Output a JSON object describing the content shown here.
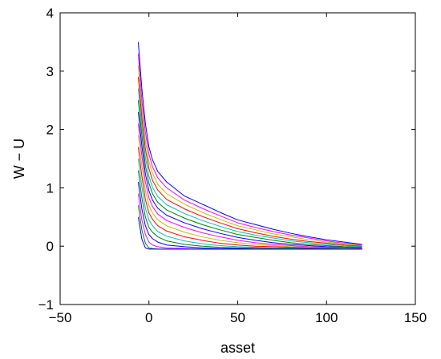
{
  "chart_data": {
    "type": "line",
    "title": "",
    "xlabel": "asset",
    "ylabel": "W − U",
    "xlim": [
      -50,
      150
    ],
    "ylim": [
      -1,
      4
    ],
    "xticks": [
      -50,
      0,
      50,
      100,
      150
    ],
    "yticks": [
      -1,
      0,
      1,
      2,
      3,
      4
    ],
    "xtick_labels": [
      "−50",
      "0",
      "50",
      "100",
      "150"
    ],
    "ytick_labels": [
      "−1",
      "0",
      "1",
      "2",
      "3",
      "4"
    ],
    "grid": false,
    "legend": "none",
    "series": [
      {
        "color": "#0000ff",
        "x": [
          -6,
          -4,
          -2,
          0,
          2,
          5,
          10,
          20,
          30,
          40,
          50,
          60,
          70,
          80,
          90,
          100,
          110,
          120
        ],
        "y": [
          3.5,
          2.7,
          2.1,
          1.7,
          1.48,
          1.28,
          1.1,
          0.86,
          0.72,
          0.58,
          0.45,
          0.37,
          0.29,
          0.22,
          0.16,
          0.11,
          0.07,
          0.03
        ]
      },
      {
        "color": "#ff00ff",
        "x": [
          -6,
          -4,
          -2,
          0,
          2,
          5,
          10,
          20,
          30,
          40,
          50,
          60,
          70,
          80,
          90,
          100,
          110,
          120
        ],
        "y": [
          3.3,
          2.5,
          1.95,
          1.58,
          1.36,
          1.17,
          1.0,
          0.79,
          0.65,
          0.52,
          0.4,
          0.32,
          0.25,
          0.19,
          0.14,
          0.09,
          0.05,
          0.02
        ]
      },
      {
        "color": "#bfbf00",
        "x": [
          -6,
          -4,
          -2,
          0,
          2,
          5,
          10,
          20,
          30,
          40,
          50,
          60,
          70,
          80,
          90,
          100,
          110,
          120
        ],
        "y": [
          3.1,
          2.35,
          1.8,
          1.45,
          1.25,
          1.06,
          0.9,
          0.72,
          0.58,
          0.46,
          0.35,
          0.28,
          0.21,
          0.16,
          0.11,
          0.07,
          0.04,
          0.01
        ]
      },
      {
        "color": "#ff0000",
        "x": [
          -6,
          -4,
          -2,
          0,
          2,
          5,
          10,
          20,
          30,
          40,
          50,
          60,
          70,
          80,
          90,
          100,
          110,
          120
        ],
        "y": [
          2.9,
          2.2,
          1.66,
          1.33,
          1.13,
          0.96,
          0.8,
          0.64,
          0.51,
          0.4,
          0.3,
          0.23,
          0.17,
          0.12,
          0.08,
          0.05,
          0.02,
          0.0
        ]
      },
      {
        "color": "#00bfbf",
        "x": [
          -6,
          -4,
          -2,
          0,
          2,
          5,
          10,
          20,
          30,
          40,
          50,
          60,
          70,
          80,
          90,
          100,
          110,
          120
        ],
        "y": [
          2.7,
          2.05,
          1.52,
          1.2,
          1.01,
          0.85,
          0.71,
          0.56,
          0.44,
          0.34,
          0.25,
          0.19,
          0.14,
          0.09,
          0.06,
          0.03,
          0.01,
          -0.01
        ]
      },
      {
        "color": "#008000",
        "x": [
          -6,
          -4,
          -2,
          0,
          2,
          5,
          10,
          20,
          30,
          40,
          50,
          60,
          70,
          80,
          90,
          100,
          110,
          120
        ],
        "y": [
          2.5,
          1.9,
          1.38,
          1.08,
          0.9,
          0.75,
          0.62,
          0.48,
          0.37,
          0.28,
          0.2,
          0.15,
          0.1,
          0.06,
          0.03,
          0.01,
          -0.01,
          -0.02
        ]
      },
      {
        "color": "#0000ff",
        "x": [
          -6,
          -4,
          -2,
          0,
          2,
          5,
          10,
          20,
          30,
          40,
          50,
          60,
          70,
          80,
          90,
          100,
          110,
          120
        ],
        "y": [
          2.3,
          1.72,
          1.24,
          0.95,
          0.79,
          0.65,
          0.53,
          0.4,
          0.3,
          0.22,
          0.15,
          0.1,
          0.06,
          0.03,
          0.01,
          -0.01,
          -0.02,
          -0.03
        ]
      },
      {
        "color": "#ff00ff",
        "x": [
          -6,
          -4,
          -2,
          0,
          2,
          5,
          10,
          20,
          30,
          40,
          50,
          60,
          70,
          80,
          90,
          100,
          110,
          120
        ],
        "y": [
          2.1,
          1.55,
          1.1,
          0.83,
          0.68,
          0.55,
          0.44,
          0.32,
          0.23,
          0.16,
          0.1,
          0.06,
          0.03,
          0.01,
          -0.01,
          -0.02,
          -0.03,
          -0.03
        ]
      },
      {
        "color": "#bfbf00",
        "x": [
          -6,
          -4,
          -2,
          0,
          2,
          5,
          10,
          20,
          30,
          40,
          50,
          60,
          70,
          80,
          90,
          100,
          110,
          120
        ],
        "y": [
          1.9,
          1.38,
          0.95,
          0.7,
          0.57,
          0.45,
          0.35,
          0.24,
          0.16,
          0.1,
          0.06,
          0.03,
          0.01,
          -0.01,
          -0.02,
          -0.03,
          -0.03,
          -0.04
        ]
      },
      {
        "color": "#ff0000",
        "x": [
          -6,
          -4,
          -2,
          0,
          2,
          5,
          10,
          20,
          30,
          40,
          50,
          60,
          70,
          80,
          90,
          100,
          110,
          120
        ],
        "y": [
          1.7,
          1.2,
          0.8,
          0.57,
          0.46,
          0.35,
          0.26,
          0.16,
          0.1,
          0.05,
          0.02,
          0.0,
          -0.01,
          -0.02,
          -0.03,
          -0.03,
          -0.04,
          -0.04
        ]
      },
      {
        "color": "#00bfbf",
        "x": [
          -6,
          -4,
          -2,
          0,
          2,
          5,
          10,
          20,
          30,
          40,
          50,
          60,
          70,
          80,
          90,
          100,
          110,
          120
        ],
        "y": [
          1.5,
          1.02,
          0.65,
          0.45,
          0.35,
          0.25,
          0.17,
          0.09,
          0.04,
          0.01,
          -0.01,
          -0.02,
          -0.03,
          -0.03,
          -0.04,
          -0.04,
          -0.04,
          -0.05
        ]
      },
      {
        "color": "#008000",
        "x": [
          -6,
          -4,
          -2,
          0,
          2,
          5,
          10,
          20,
          30,
          40,
          50,
          60,
          70,
          80,
          90,
          100,
          110,
          120
        ],
        "y": [
          1.3,
          0.83,
          0.5,
          0.32,
          0.24,
          0.16,
          0.09,
          0.03,
          0.0,
          -0.02,
          -0.03,
          -0.03,
          -0.04,
          -0.04,
          -0.04,
          -0.05,
          -0.05,
          -0.05
        ]
      },
      {
        "color": "#0000ff",
        "x": [
          -6,
          -4,
          -2,
          0,
          2,
          5,
          10,
          20,
          30,
          40,
          50,
          60,
          70,
          80,
          90,
          100,
          110,
          120
        ],
        "y": [
          1.1,
          0.64,
          0.35,
          0.2,
          0.13,
          0.07,
          0.02,
          -0.01,
          -0.03,
          -0.04,
          -0.04,
          -0.05,
          -0.05,
          -0.05,
          -0.05,
          -0.05,
          -0.05,
          -0.05
        ]
      },
      {
        "color": "#ff00ff",
        "x": [
          -6,
          -4,
          -2,
          0,
          2,
          5,
          10,
          20,
          30,
          40,
          50,
          60,
          70,
          80,
          90,
          100,
          110,
          120
        ],
        "y": [
          0.9,
          0.45,
          0.2,
          0.07,
          0.02,
          -0.01,
          -0.03,
          -0.04,
          -0.05,
          -0.05,
          -0.05,
          -0.05,
          -0.05,
          -0.05,
          -0.05,
          -0.05,
          -0.05,
          -0.05
        ]
      },
      {
        "color": "#008000",
        "x": [
          -6,
          -4,
          -2,
          0,
          2,
          5,
          10,
          20,
          30,
          40,
          50,
          60,
          70,
          80,
          90,
          100,
          110,
          120
        ],
        "y": [
          0.7,
          0.28,
          0.05,
          -0.03,
          -0.04,
          -0.05,
          -0.05,
          -0.05,
          -0.05,
          -0.05,
          -0.05,
          -0.05,
          -0.05,
          -0.05,
          -0.05,
          -0.05,
          -0.05,
          -0.05
        ]
      },
      {
        "color": "#0000ff",
        "x": [
          -6,
          -4,
          -2,
          0,
          2,
          5,
          10,
          20,
          30,
          40,
          50,
          60,
          70,
          80,
          90,
          100,
          110,
          120
        ],
        "y": [
          0.5,
          0.12,
          -0.03,
          -0.05,
          -0.05,
          -0.05,
          -0.05,
          -0.05,
          -0.05,
          -0.05,
          -0.05,
          -0.05,
          -0.05,
          -0.05,
          -0.05,
          -0.05,
          -0.05,
          -0.05
        ]
      }
    ]
  }
}
